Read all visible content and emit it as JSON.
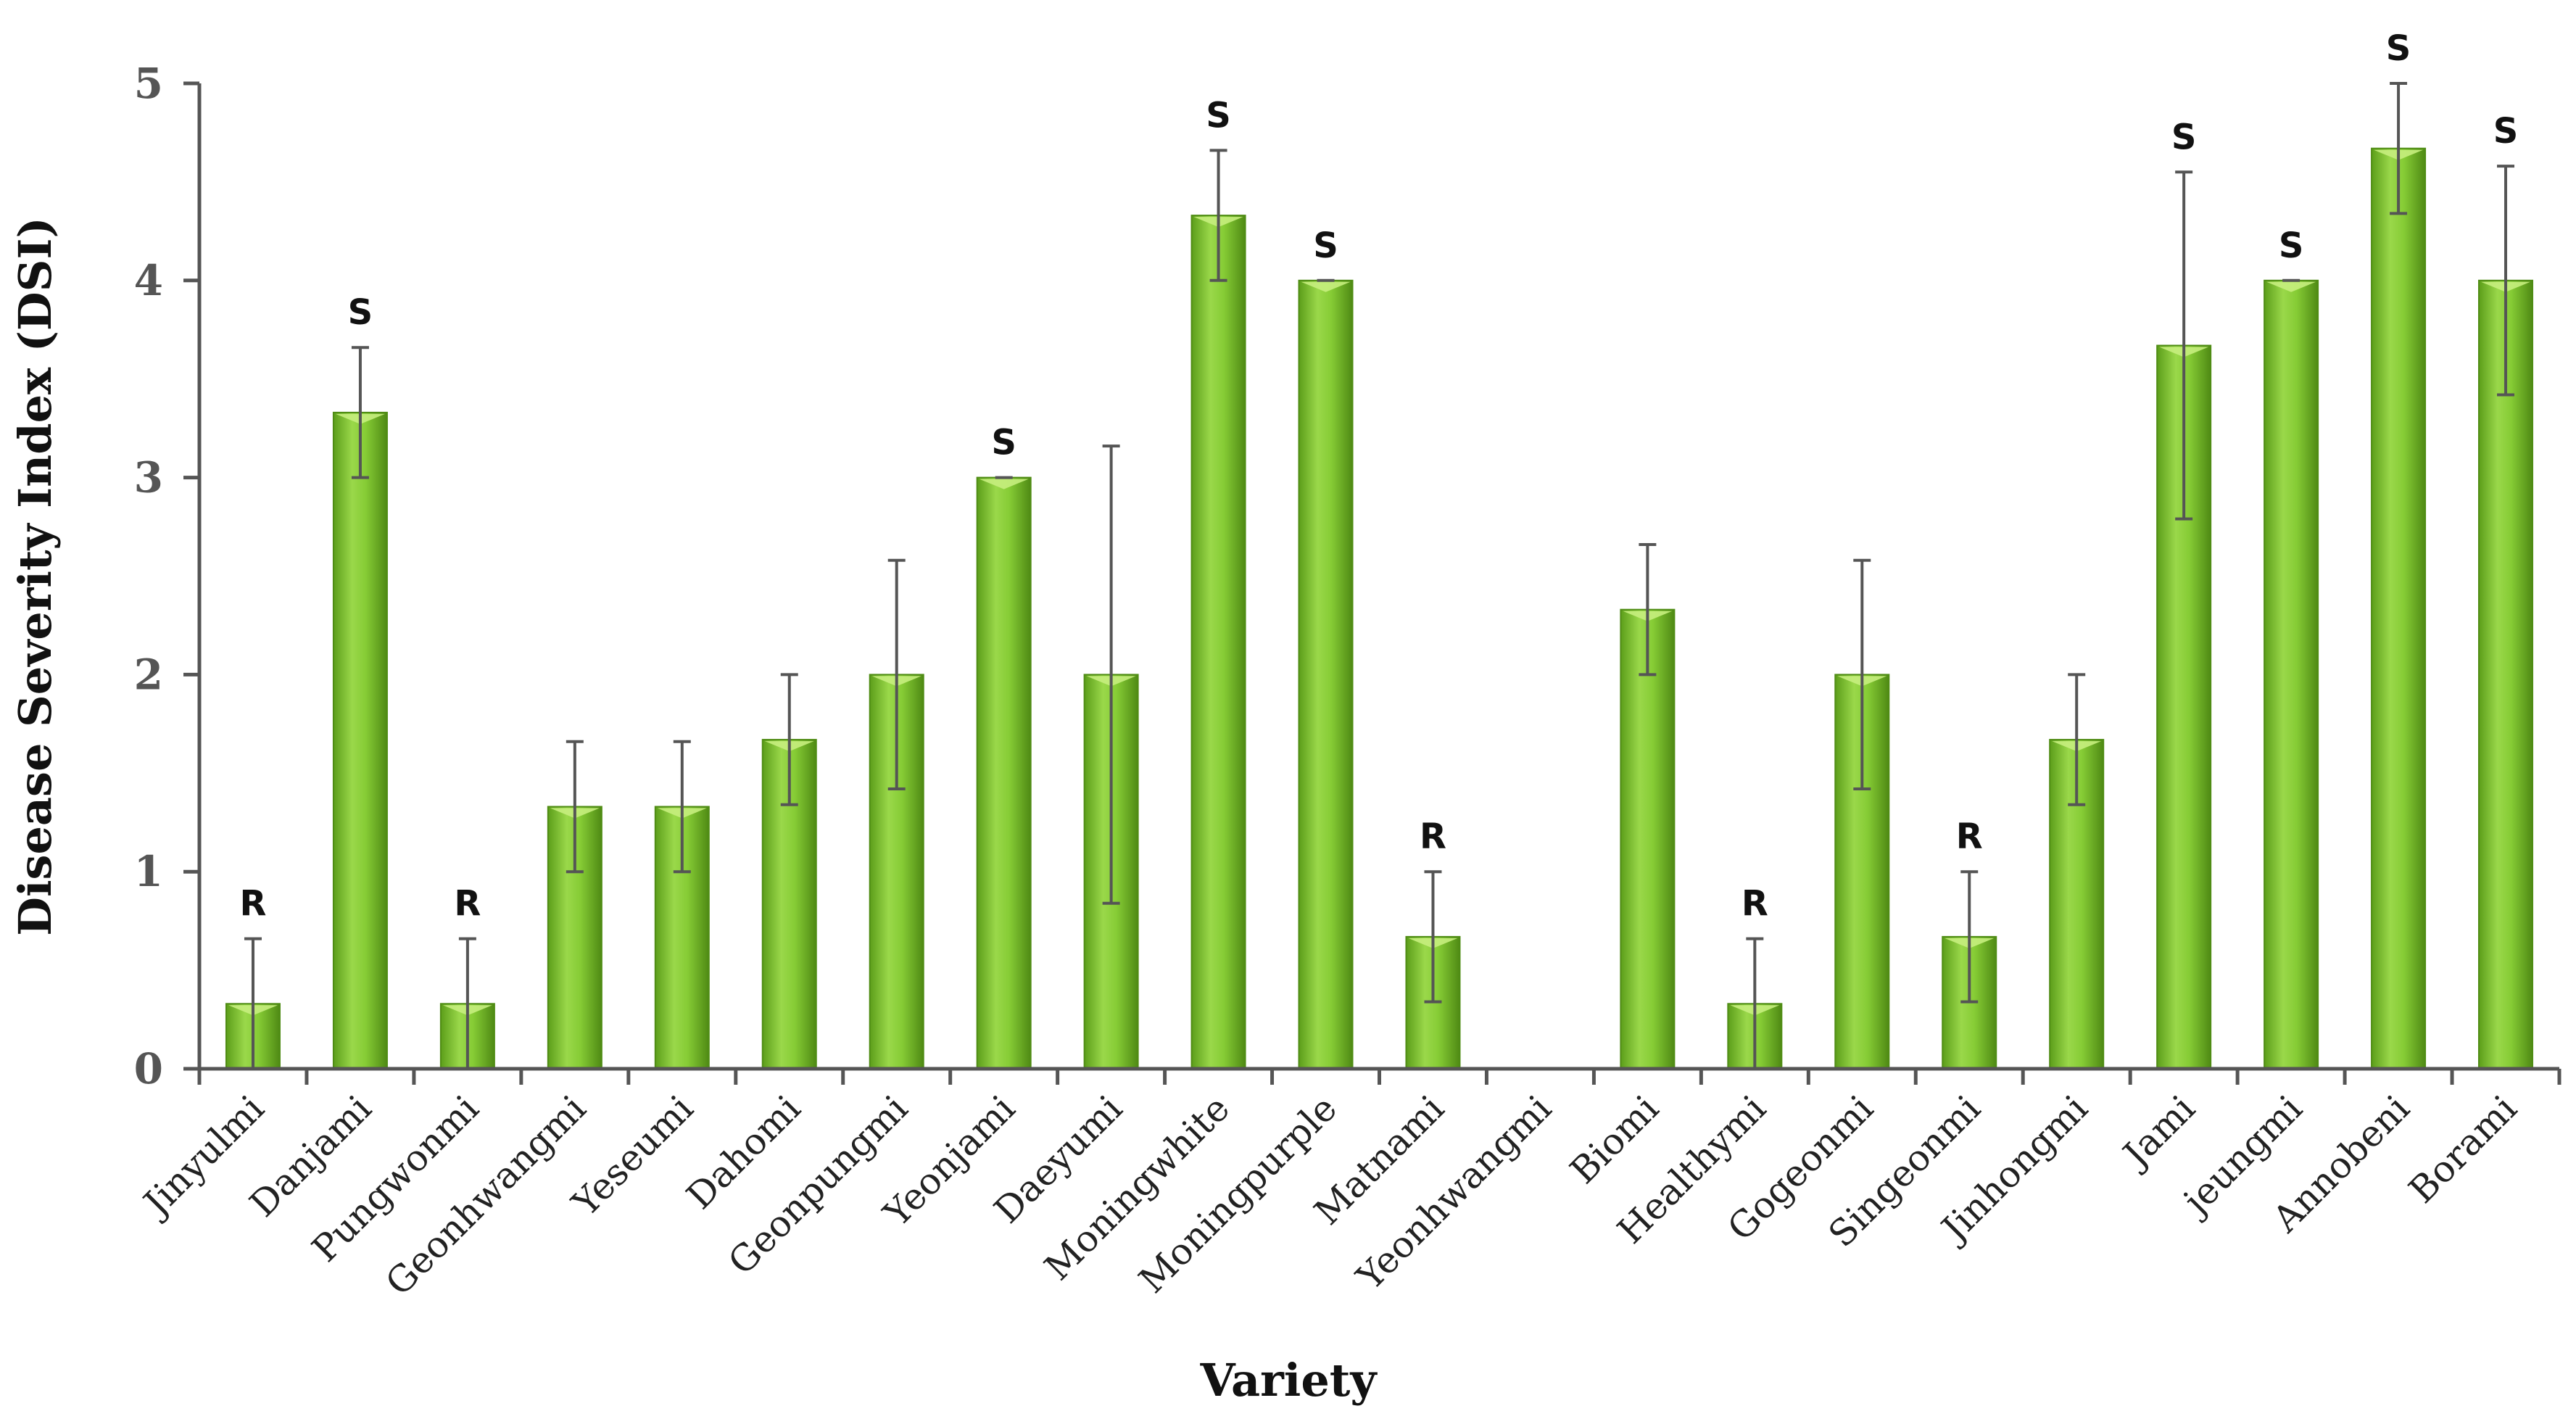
{
  "chart_data": {
    "type": "bar",
    "title": "",
    "xlabel": "Variety",
    "ylabel": "Disease Severity Index (DSI)",
    "ylim": [
      0,
      5
    ],
    "yticks": [
      0,
      1,
      2,
      3,
      4,
      5
    ],
    "grid": false,
    "categories": [
      "Jinyulmi",
      "Danjami",
      "Pungwonmi",
      "Geonhwangmi",
      "Yeseumi",
      "Dahomi",
      "Geonpungmi",
      "Yeonjami",
      "Daeyumi",
      "Moningwhite",
      "Moningpurple",
      "Matnami",
      "Yeonhwangmi",
      "Biomi",
      "Healthymi",
      "Gogeonmi",
      "Singeonmi",
      "Jinhongmi",
      "Jami",
      "jeungmi",
      "Annobeni",
      "Borami"
    ],
    "values": [
      0.33,
      3.33,
      0.33,
      1.33,
      1.33,
      1.67,
      2.0,
      3.0,
      2.0,
      4.33,
      4.0,
      0.67,
      0,
      2.33,
      0.33,
      2.0,
      0.67,
      1.67,
      3.67,
      4.0,
      4.67,
      4.0
    ],
    "errors": [
      0.33,
      0.33,
      0.33,
      0.33,
      0.33,
      0.33,
      0.58,
      0,
      1.16,
      0.33,
      0,
      0.33,
      0,
      0.33,
      0.33,
      0.58,
      0.33,
      0.33,
      0.88,
      0,
      0.33,
      0.58
    ],
    "annotations": [
      "R",
      "S",
      "R",
      "",
      "",
      "",
      "",
      "S",
      "",
      "S",
      "S",
      "R",
      "",
      "",
      "R",
      "",
      "R",
      "",
      "S",
      "S",
      "S",
      "S"
    ],
    "bar_color": "#7cc22e",
    "bar_highlight": "#c6ee7e",
    "bar_edge": "#4f8c14"
  }
}
